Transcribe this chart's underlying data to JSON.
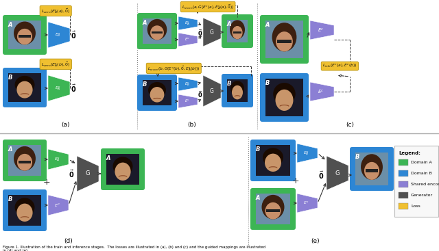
{
  "colors": {
    "domain_a": "#3cb554",
    "domain_b": "#2d86d4",
    "shared_encoder": "#8b7fd4",
    "generator": "#505050",
    "loss": "#f0c030",
    "background": "#ffffff",
    "arrow": "#222222",
    "dashed": "#444444",
    "divider": "#888888"
  },
  "legend": {
    "title": "Legend:",
    "items": [
      "Domain A",
      "Domain B",
      "Shared encoder",
      "Generator",
      "Loss"
    ],
    "colors": [
      "#3cb554",
      "#2d86d4",
      "#8b7fd4",
      "#505050",
      "#f0c030"
    ]
  },
  "caption": "Figure 1. Illustration of the train and inference stages.  The losses are illustrated in (a), (b) and (c) and the guided mappings are illustrated in (d) and (e)."
}
